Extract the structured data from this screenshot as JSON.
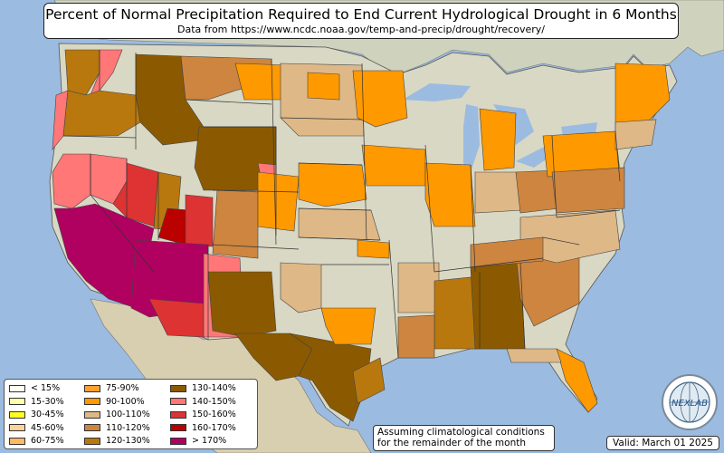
{
  "title": "Percent of Normal Precipitation Required to End Current Hydrological Drought in 6 Months",
  "subtitle": "Data from https://www.ncdc.noaa.gov/temp-and-precip/drought/recovery/",
  "note": {
    "line1": "Assuming climatological conditions",
    "line2": "for the remainder of the month"
  },
  "valid": "Valid: March 01 2025",
  "logo": {
    "text": "NEXLAB",
    "icon": "nexlab-logo-globe"
  },
  "colors": {
    "ocean": "#9cbbe0",
    "land": "#d9d8c4",
    "border": "#555555"
  },
  "legend": [
    {
      "label": "< 15%",
      "color": "#fffff0"
    },
    {
      "label": "15-30%",
      "color": "#ffffb0"
    },
    {
      "label": "30-45%",
      "color": "#ffff20"
    },
    {
      "label": "45-60%",
      "color": "#fcd49a"
    },
    {
      "label": "60-75%",
      "color": "#ffb866"
    },
    {
      "label": "75-90%",
      "color": "#ffa030"
    },
    {
      "label": "90-100%",
      "color": "#ff9900"
    },
    {
      "label": "100-110%",
      "color": "#deb887"
    },
    {
      "label": "110-120%",
      "color": "#cd853f"
    },
    {
      "label": "120-130%",
      "color": "#b8780e"
    },
    {
      "label": "130-140%",
      "color": "#8b5a00"
    },
    {
      "label": "140-150%",
      "color": "#ff7777"
    },
    {
      "label": "150-160%",
      "color": "#dd3333"
    },
    {
      "label": "160-170%",
      "color": "#bb0000"
    },
    {
      "label": "> 170%",
      "color": "#b00060"
    }
  ]
}
